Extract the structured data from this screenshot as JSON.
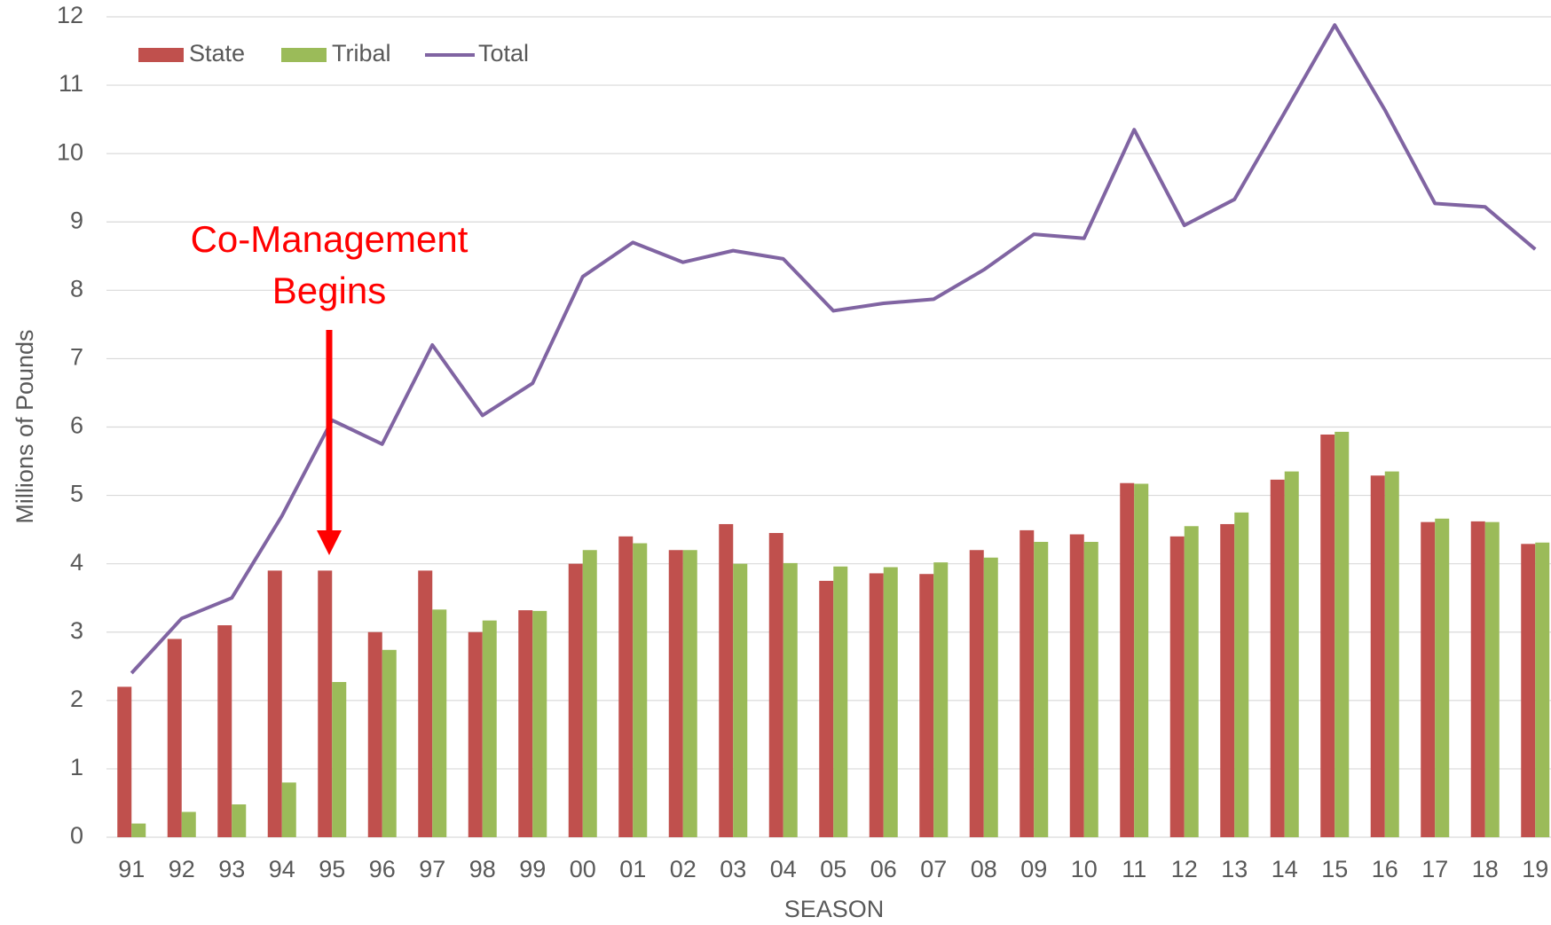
{
  "chart_data": {
    "type": "bar_line",
    "x_label": "SEASON",
    "y_label": "Millions of Pounds",
    "annotation": [
      "Co-Management",
      "Begins"
    ],
    "categories": [
      "91",
      "92",
      "93",
      "94",
      "95",
      "96",
      "97",
      "98",
      "99",
      "00",
      "01",
      "02",
      "03",
      "04",
      "05",
      "06",
      "07",
      "08",
      "09",
      "10",
      "11",
      "12",
      "13",
      "14",
      "15",
      "16",
      "17",
      "18",
      "19"
    ],
    "series": [
      {
        "name": "State",
        "type": "bar",
        "color": "#c0504d",
        "values": [
          2.2,
          2.9,
          3.1,
          3.9,
          3.9,
          3.0,
          3.9,
          3.0,
          3.32,
          4.0,
          4.4,
          4.2,
          4.58,
          4.45,
          3.75,
          3.86,
          3.85,
          4.2,
          4.49,
          4.43,
          5.18,
          4.4,
          4.58,
          5.23,
          5.89,
          5.29,
          4.61,
          4.62,
          4.29
        ]
      },
      {
        "name": "Tribal",
        "type": "bar",
        "color": "#9bbb59",
        "values": [
          0.2,
          0.37,
          0.48,
          0.8,
          2.27,
          2.74,
          3.33,
          3.17,
          3.31,
          4.2,
          4.3,
          4.2,
          4.0,
          4.01,
          3.96,
          3.95,
          4.02,
          4.09,
          4.32,
          4.32,
          5.17,
          4.55,
          4.75,
          5.35,
          5.93,
          5.35,
          4.66,
          4.61,
          4.31
        ]
      },
      {
        "name": "Total",
        "type": "line",
        "color": "#8064a2",
        "values": [
          2.4,
          3.2,
          3.5,
          4.7,
          6.1,
          5.75,
          7.2,
          6.17,
          6.64,
          8.2,
          8.7,
          8.41,
          8.58,
          8.46,
          7.7,
          7.81,
          7.87,
          8.3,
          8.82,
          8.76,
          10.35,
          8.95,
          9.33,
          10.6,
          11.88,
          10.64,
          9.27,
          9.22,
          8.6
        ]
      }
    ],
    "ylim": [
      0,
      12
    ],
    "yticks": [
      0,
      1,
      2,
      3,
      4,
      5,
      6,
      7,
      8,
      9,
      10,
      11,
      12
    ],
    "grid": true,
    "legend": "top-left"
  }
}
